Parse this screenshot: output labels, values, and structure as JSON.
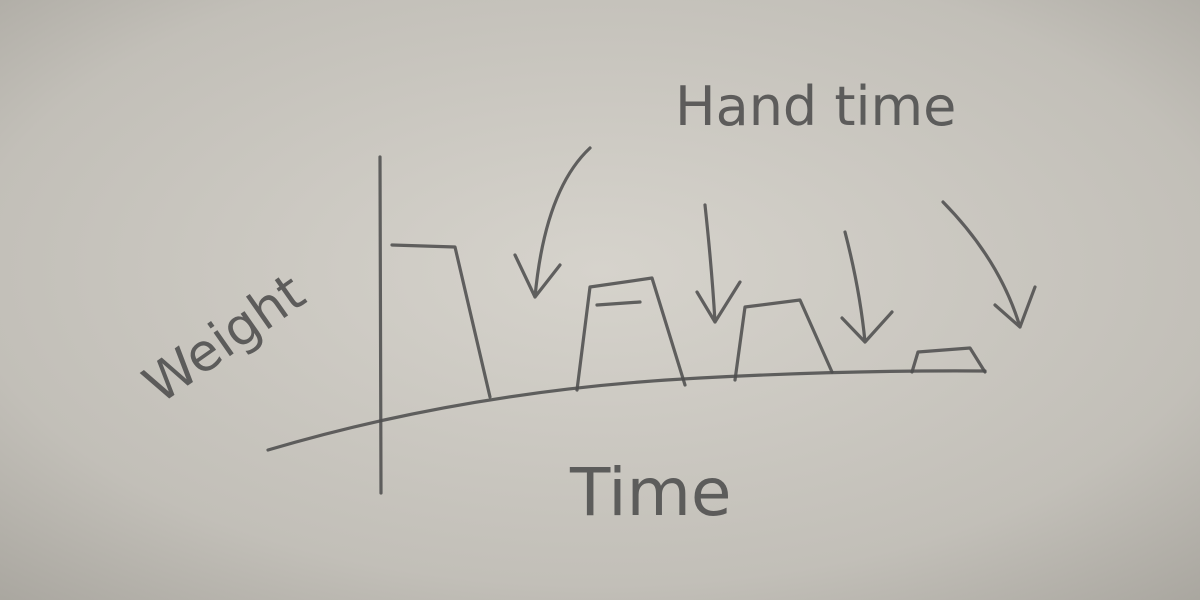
{
  "labels": {
    "y_axis": "Weight",
    "x_axis": "Time",
    "annotation": "Hand time"
  }
}
